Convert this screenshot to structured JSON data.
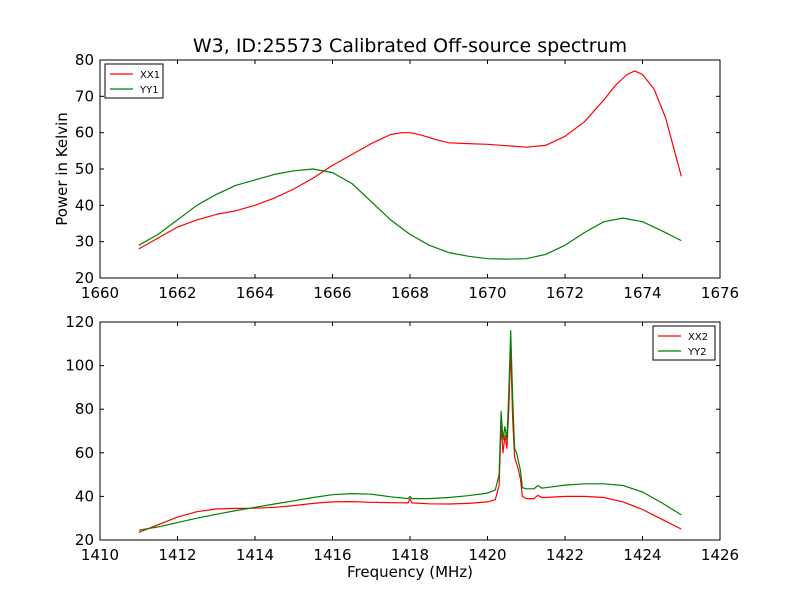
{
  "figure": {
    "title": "W3, ID:25573 Calibrated Off-source spectrum",
    "background": "#ffffff"
  },
  "chart_data": [
    {
      "type": "line",
      "title": "W3, ID:25573 Calibrated Off-source spectrum",
      "xlabel": "",
      "ylabel": "Power in Kelvin",
      "xlim": [
        1660,
        1676
      ],
      "ylim": [
        20,
        80
      ],
      "xticks": [
        "1660",
        "1662",
        "1664",
        "1666",
        "1668",
        "1670",
        "1672",
        "1674",
        "1676"
      ],
      "yticks": [
        "20",
        "30",
        "40",
        "50",
        "60",
        "70",
        "80"
      ],
      "grid": false,
      "legend": "top-left",
      "series": [
        {
          "name": "XX1",
          "color": "#ff0000",
          "x": [
            1661.0,
            1661.5,
            1662.0,
            1662.5,
            1663.0,
            1663.5,
            1664.0,
            1664.5,
            1665.0,
            1665.5,
            1666.0,
            1666.5,
            1667.0,
            1667.5,
            1667.8,
            1668.0,
            1668.3,
            1668.7,
            1669.0,
            1669.5,
            1670.0,
            1670.5,
            1671.0,
            1671.5,
            1672.0,
            1672.5,
            1673.0,
            1673.3,
            1673.6,
            1673.8,
            1674.0,
            1674.3,
            1674.6,
            1675.0
          ],
          "y": [
            28,
            31,
            34,
            36,
            37.5,
            38.5,
            40,
            42,
            44.5,
            47.5,
            51,
            54,
            57,
            59.5,
            60,
            60,
            59.3,
            58,
            57.2,
            57,
            56.8,
            56.4,
            56,
            56.5,
            59,
            63,
            69,
            73,
            76,
            77,
            76,
            72,
            64,
            48
          ]
        },
        {
          "name": "YY1",
          "color": "#008000",
          "x": [
            1661.0,
            1661.5,
            1662.0,
            1662.5,
            1663.0,
            1663.5,
            1664.0,
            1664.5,
            1665.0,
            1665.5,
            1666.0,
            1666.5,
            1667.0,
            1667.5,
            1668.0,
            1668.5,
            1669.0,
            1669.5,
            1670.0,
            1670.5,
            1671.0,
            1671.5,
            1672.0,
            1672.5,
            1673.0,
            1673.5,
            1674.0,
            1674.5,
            1675.0
          ],
          "y": [
            29,
            32,
            36,
            40,
            43,
            45.5,
            47,
            48.5,
            49.5,
            50,
            49,
            46,
            41,
            36,
            32,
            29,
            27,
            26,
            25.3,
            25.2,
            25.3,
            26.5,
            29,
            32.5,
            35.5,
            36.5,
            35.5,
            33,
            30.3
          ]
        }
      ]
    },
    {
      "type": "line",
      "title": "",
      "xlabel": "Frequency (MHz)",
      "ylabel": "",
      "xlim": [
        1410,
        1426
      ],
      "ylim": [
        20,
        120
      ],
      "xticks": [
        "1410",
        "1412",
        "1414",
        "1416",
        "1418",
        "1420",
        "1422",
        "1424",
        "1426"
      ],
      "yticks": [
        "20",
        "40",
        "60",
        "80",
        "100",
        "120"
      ],
      "grid": false,
      "legend": "top-right",
      "series": [
        {
          "name": "XX2",
          "color": "#ff0000",
          "x": [
            1411.0,
            1411.5,
            1412.0,
            1412.5,
            1413.0,
            1413.5,
            1414.0,
            1414.5,
            1415.0,
            1415.5,
            1416.0,
            1416.5,
            1417.0,
            1417.5,
            1417.95,
            1418.0,
            1418.05,
            1418.5,
            1419.0,
            1419.5,
            1420.0,
            1420.2,
            1420.3,
            1420.35,
            1420.4,
            1420.45,
            1420.5,
            1420.55,
            1420.6,
            1420.65,
            1420.7,
            1420.75,
            1420.8,
            1420.85,
            1420.9,
            1421.0,
            1421.2,
            1421.3,
            1421.4,
            1421.5,
            1422.0,
            1422.5,
            1423.0,
            1423.5,
            1424.0,
            1424.5,
            1425.0
          ],
          "y": [
            23.5,
            27,
            30.5,
            33,
            34.2,
            34.5,
            34.6,
            35,
            35.8,
            36.8,
            37.5,
            37.6,
            37.3,
            37.1,
            37,
            39,
            37,
            36.6,
            36.5,
            36.8,
            37.5,
            38.5,
            45,
            73,
            60,
            68,
            62,
            80,
            108,
            75,
            58,
            55,
            52,
            48,
            40,
            39,
            39,
            40.5,
            39.5,
            39.5,
            40,
            40,
            39.5,
            37.5,
            34,
            29.5,
            25
          ]
        },
        {
          "name": "YY2",
          "color": "#008000",
          "x": [
            1411.0,
            1411.5,
            1412.0,
            1412.5,
            1413.0,
            1413.5,
            1414.0,
            1414.5,
            1415.0,
            1415.5,
            1416.0,
            1416.5,
            1417.0,
            1417.5,
            1417.95,
            1418.0,
            1418.05,
            1418.5,
            1419.0,
            1419.5,
            1420.0,
            1420.2,
            1420.3,
            1420.35,
            1420.4,
            1420.45,
            1420.5,
            1420.55,
            1420.6,
            1420.65,
            1420.7,
            1420.75,
            1420.8,
            1420.85,
            1420.9,
            1421.0,
            1421.2,
            1421.3,
            1421.4,
            1421.5,
            1422.0,
            1422.5,
            1423.0,
            1423.5,
            1424.0,
            1424.5,
            1425.0
          ],
          "y": [
            24.5,
            26,
            28,
            30,
            31.8,
            33.5,
            35,
            36.5,
            38,
            39.5,
            40.8,
            41.3,
            41,
            39.8,
            39,
            40,
            39,
            39,
            39.5,
            40.3,
            41.5,
            43,
            50,
            79,
            66,
            72,
            66,
            88,
            116,
            85,
            62,
            60,
            56,
            52,
            44,
            43.5,
            43.5,
            45,
            43.8,
            44,
            45.2,
            45.8,
            45.8,
            45,
            42,
            37,
            31.5
          ]
        }
      ]
    }
  ]
}
